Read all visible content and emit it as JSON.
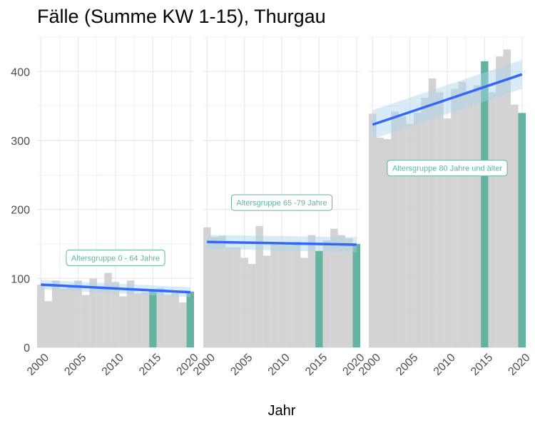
{
  "title": "Fälle (Summe KW 1-15), Thurgau",
  "xlabel": "Jahr",
  "colors": {
    "bar": "#d3d3d3",
    "highlight": "#66b2a0",
    "trend": "#3366ff",
    "ribbon": "#a6d4ec",
    "grid": "#ebebeb",
    "annotation": "#66b2a0"
  },
  "chart_data": {
    "type": "bar",
    "title": "Fälle (Summe KW 1-15), Thurgau",
    "xlabel": "Jahr",
    "ylabel": "",
    "x": [
      2000,
      2001,
      2002,
      2003,
      2004,
      2005,
      2006,
      2007,
      2008,
      2009,
      2010,
      2011,
      2012,
      2013,
      2014,
      2015,
      2016,
      2017,
      2018,
      2019,
      2020
    ],
    "xlim": [
      1999.5,
      2020.5
    ],
    "ylim": [
      0,
      450
    ],
    "x_ticks": [
      "2000",
      "2005",
      "2010",
      "2015",
      "2020"
    ],
    "y_ticks": [
      "0",
      "100",
      "200",
      "300",
      "400"
    ],
    "grid": true,
    "highlight_years": [
      2015,
      2020
    ],
    "panels": [
      {
        "label": "Altersgruppe 0 - 64 Jahre",
        "values": [
          91,
          67,
          97,
          85,
          89,
          97,
          76,
          100,
          89,
          108,
          95,
          74,
          97,
          78,
          80,
          82,
          86,
          76,
          79,
          65,
          81
        ],
        "trend": {
          "start": 91,
          "end": 80,
          "ci_start": [
            84,
            98
          ],
          "ci_end": [
            73,
            87
          ]
        },
        "annotation_y": 130
      },
      {
        "label": "Altersgruppe 65 -79 Jahre",
        "values": [
          174,
          160,
          162,
          145,
          145,
          130,
          121,
          176,
          133,
          149,
          148,
          148,
          153,
          130,
          163,
          140,
          155,
          172,
          163,
          158,
          150
        ],
        "trend": {
          "start": 153,
          "end": 149,
          "ci_start": [
            143,
            163
          ],
          "ci_end": [
            138,
            160
          ]
        },
        "annotation_y": 210
      },
      {
        "label": "Altersgruppe 80 Jahre und älter",
        "values": [
          339,
          304,
          302,
          342,
          335,
          324,
          340,
          362,
          390,
          370,
          332,
          375,
          385,
          372,
          380,
          415,
          370,
          422,
          432,
          352,
          340
        ],
        "trend": {
          "start": 323,
          "end": 396,
          "ci_start": [
            302,
            344
          ],
          "ci_end": [
            375,
            417
          ]
        },
        "annotation_y": 260
      }
    ]
  }
}
